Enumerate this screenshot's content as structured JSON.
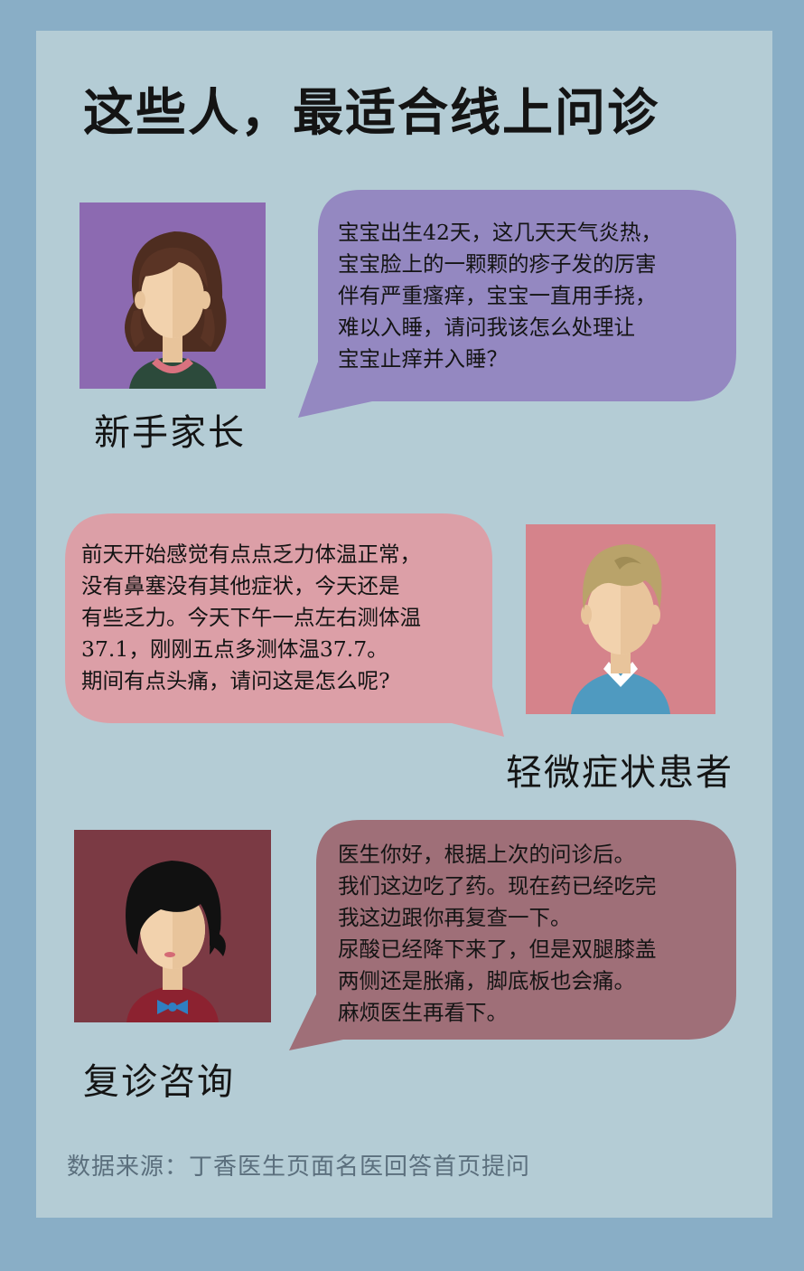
{
  "title": "这些人，最适合线上问诊",
  "colors": {
    "background": "#89aec6",
    "panel": "#b4ccd5",
    "bubble1": "#9488c1",
    "bubble2": "#dc9fa7",
    "bubble3": "#9f6f78"
  },
  "cases": [
    {
      "label": "新手家长",
      "lines": [
        "宝宝出生42天，这几天天气炎热，",
        "宝宝脸上的一颗颗的疹子发的厉害",
        "伴有严重瘙痒，宝宝一直用手挠，",
        "难以入睡，请问我该怎么处理让",
        "宝宝止痒并入睡？"
      ]
    },
    {
      "label": "轻微症状患者",
      "lines": [
        "前天开始感觉有点点乏力体温正常，",
        "没有鼻塞没有其他症状，今天还是",
        "有些乏力。今天下午一点左右测体温",
        "37.1，刚刚五点多测体温37.7。",
        "期间有点头痛，请问这是怎么呢?"
      ]
    },
    {
      "label": "复诊咨询",
      "lines": [
        "医生你好，根据上次的问诊后。",
        "我们这边吃了药。现在药已经吃完",
        "我这边跟你再复查一下。",
        "尿酸已经降下来了，但是双腿膝盖",
        "两侧还是胀痛，脚底板也会痛。",
        "麻烦医生再看下。"
      ]
    }
  ],
  "source": "数据来源：丁香医生页面名医回答首页提问"
}
